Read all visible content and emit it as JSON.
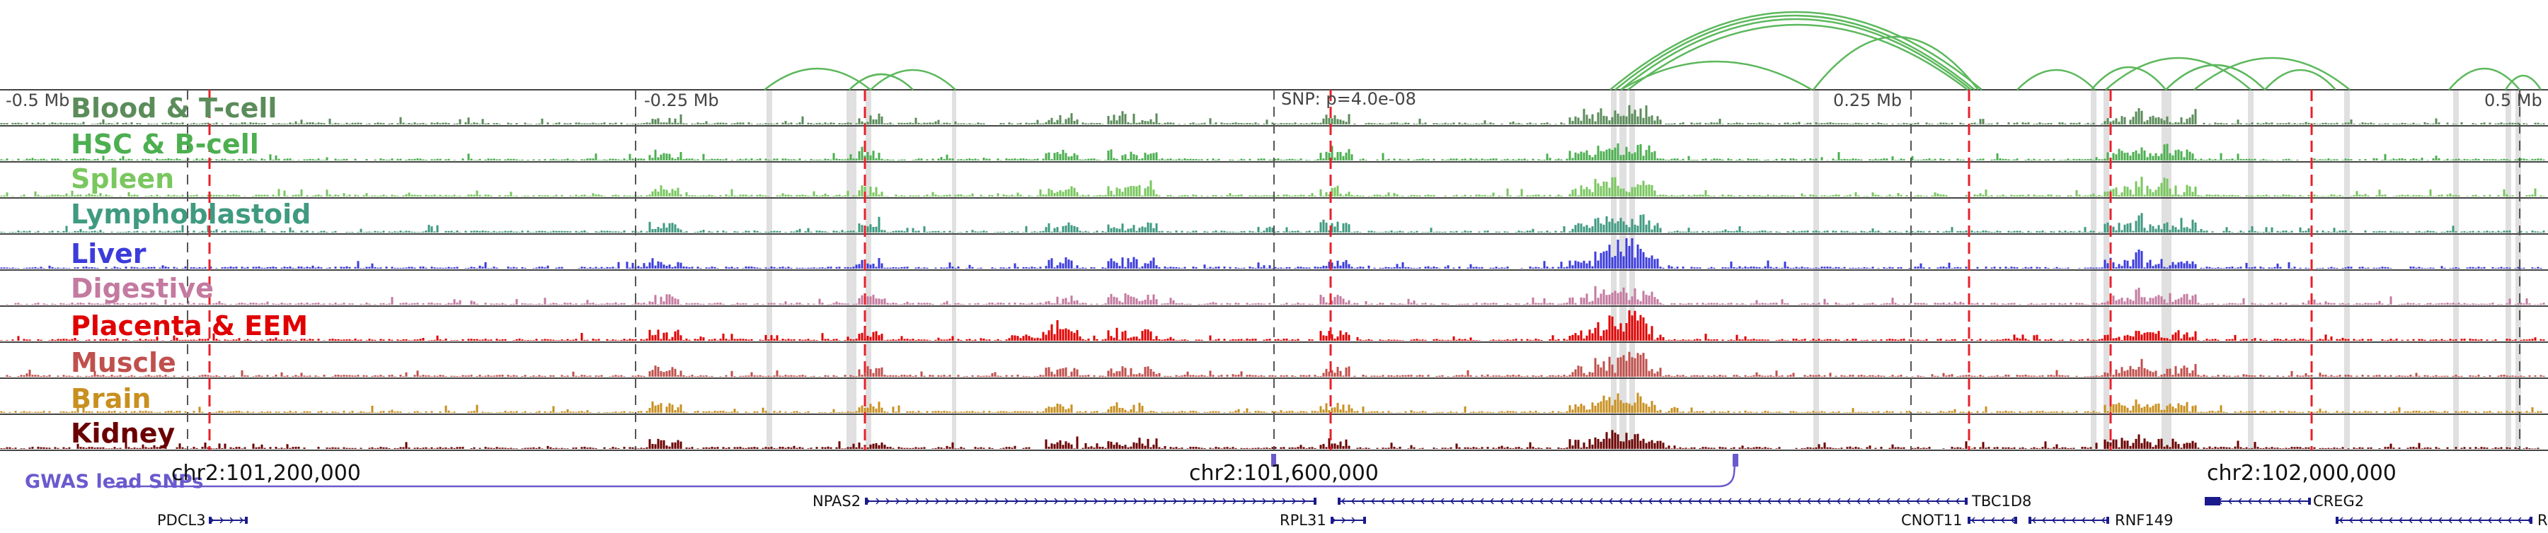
{
  "ruler": {
    "labels": [
      "-0.5 Mb",
      "-0.25 Mb",
      "SNP: p=4.0e-08",
      "0.25 Mb",
      "0.5 Mb"
    ],
    "offsets_mb": [
      -0.5,
      -0.25,
      0,
      0.25,
      0.5
    ]
  },
  "tracks": [
    {
      "name": "Blood & T-cell",
      "color": "#5b8c5a"
    },
    {
      "name": "HSC & B-cell",
      "color": "#4caf50"
    },
    {
      "name": "Spleen",
      "color": "#7ac75f"
    },
    {
      "name": "Lymphoblastoid",
      "color": "#3f9a80"
    },
    {
      "name": "Liver",
      "color": "#3c3cdc"
    },
    {
      "name": "Digestive",
      "color": "#c47aa0"
    },
    {
      "name": "Placenta & EEM",
      "color": "#e00000"
    },
    {
      "name": "Muscle",
      "color": "#c0504d"
    },
    {
      "name": "Brain",
      "color": "#c89020"
    },
    {
      "name": "Kidney",
      "color": "#6b0000"
    }
  ],
  "gwas": {
    "label": "GWAS lead SNPs",
    "color": "#6a5acd"
  },
  "coordinates": [
    "chr2:101,200,000",
    "chr2:101,600,000",
    "chr2:102,000,000"
  ],
  "genes": [
    "PDCL3",
    "NPAS2",
    "RPL31",
    "TBC1D8",
    "CNOT11",
    "RNF149",
    "CREG2",
    "R"
  ],
  "links": {
    "color": "#5cb85c"
  },
  "markers": {
    "red_dashed": "#e8202a",
    "dark_dashed": "#555555",
    "highlight": "#d8d8d8"
  }
}
